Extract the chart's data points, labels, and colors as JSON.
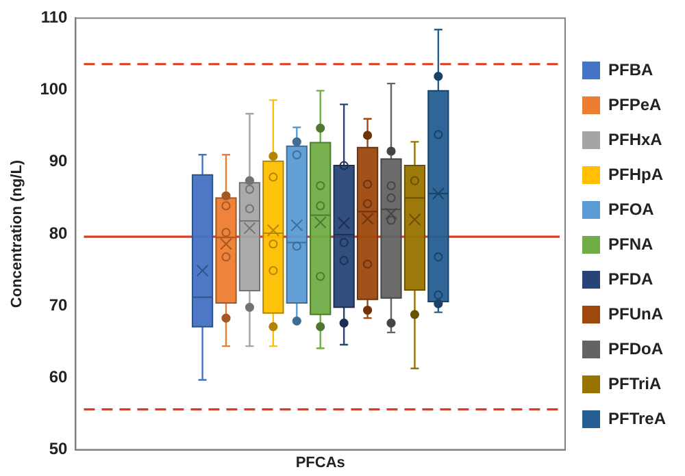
{
  "chart_data": {
    "type": "box",
    "ylabel": "Concentration (ng/L)",
    "categories": [
      "PFCAs"
    ],
    "ylim": [
      50,
      110
    ],
    "yticks": [
      50,
      60,
      70,
      80,
      90,
      100,
      110
    ],
    "grid": false,
    "legend": "right",
    "ref_lines": [
      {
        "axis": "y",
        "value": 103.6,
        "color": "#e8381b",
        "line_style": "dashed"
      },
      {
        "axis": "y",
        "value": 79.6,
        "color": "#e8381b",
        "line_style": "solid"
      },
      {
        "axis": "y",
        "value": 55.6,
        "color": "#e8381b",
        "line_style": "dashed"
      }
    ],
    "series": [
      {
        "name": "PFBA",
        "color": "#4472c4",
        "boxes": [
          {
            "low": 59.7,
            "q1": 67.1,
            "median": 71.2,
            "q3": 88.2,
            "high": 91.0,
            "mean": 74.9
          }
        ]
      },
      {
        "name": "PFPeA",
        "color": "#ed7d31",
        "boxes": [
          {
            "low": 64.4,
            "q1": 70.4,
            "median": 79.5,
            "q3": 85.0,
            "high": 91.0,
            "mean": 78.6,
            "outliers": [
              85.3,
              83.9,
              80.2,
              76.8,
              68.3
            ]
          }
        ]
      },
      {
        "name": "PFHxA",
        "color": "#a5a5a5",
        "boxes": [
          {
            "low": 64.4,
            "q1": 72.1,
            "median": 81.8,
            "q3": 87.1,
            "high": 96.7,
            "mean": 80.8,
            "outliers": [
              87.4,
              86.2,
              83.5,
              69.8
            ]
          }
        ]
      },
      {
        "name": "PFHpA",
        "color": "#ffc000",
        "boxes": [
          {
            "low": 64.4,
            "q1": 69.0,
            "median": 80.1,
            "q3": 90.1,
            "high": 98.6,
            "mean": 80.5,
            "outliers": [
              90.8,
              87.9,
              78.6,
              74.9,
              67.1
            ]
          }
        ]
      },
      {
        "name": "PFOA",
        "color": "#5b9bd5",
        "boxes": [
          {
            "low": 67.9,
            "q1": 70.4,
            "median": 78.8,
            "q3": 92.2,
            "high": 94.8,
            "mean": 81.2,
            "outliers": [
              92.8,
              91.0,
              78.3,
              67.9
            ]
          }
        ]
      },
      {
        "name": "PFNA",
        "color": "#70ad47",
        "boxes": [
          {
            "low": 64.1,
            "q1": 68.8,
            "median": 82.6,
            "q3": 92.7,
            "high": 99.9,
            "mean": 81.6,
            "outliers": [
              94.7,
              86.7,
              83.9,
              74.1,
              67.1
            ]
          }
        ]
      },
      {
        "name": "PFDA",
        "color": "#264478",
        "boxes": [
          {
            "low": 64.6,
            "q1": 69.8,
            "median": 79.9,
            "q3": 89.5,
            "high": 98.0,
            "mean": 81.5,
            "outliers": [
              89.5,
              78.8,
              76.3,
              67.6
            ]
          }
        ]
      },
      {
        "name": "PFUnA",
        "color": "#9e480e",
        "boxes": [
          {
            "low": 68.3,
            "q1": 70.9,
            "median": 83.1,
            "q3": 92.0,
            "high": 96.0,
            "mean": 82.1,
            "outliers": [
              93.7,
              86.9,
              84.2,
              75.8,
              69.4
            ]
          }
        ]
      },
      {
        "name": "PFDoA",
        "color": "#636363",
        "boxes": [
          {
            "low": 66.3,
            "q1": 71.1,
            "median": 83.4,
            "q3": 90.4,
            "high": 100.9,
            "mean": 82.8,
            "outliers": [
              91.5,
              86.7,
              85.0,
              81.9,
              67.6
            ]
          }
        ]
      },
      {
        "name": "PFTriA",
        "color": "#997300",
        "boxes": [
          {
            "low": 61.3,
            "q1": 72.2,
            "median": 85.0,
            "q3": 89.5,
            "high": 92.8,
            "mean": 82.0,
            "outliers": [
              87.4,
              68.8
            ]
          }
        ]
      },
      {
        "name": "PFTreA",
        "color": "#255e91",
        "boxes": [
          {
            "low": 69.1,
            "q1": 70.6,
            "median": 85.6,
            "q3": 99.9,
            "high": 108.4,
            "mean": 85.6,
            "outliers": [
              101.9,
              93.8,
              76.8,
              71.5,
              70.3
            ]
          }
        ]
      }
    ]
  }
}
